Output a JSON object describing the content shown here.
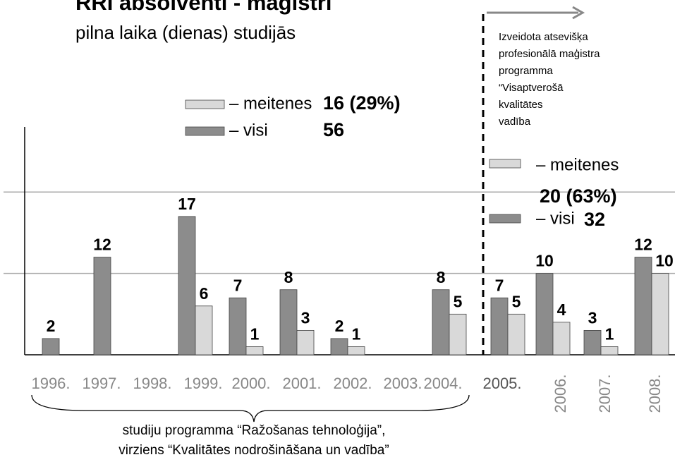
{
  "chart_data": {
    "type": "bar",
    "title": "RRI absolventi - maģistri",
    "subtitle": "pilna laika (dienas) studijās",
    "categories": [
      "1996.",
      "1997.",
      "1998.",
      "1999.",
      "2000.",
      "2001.",
      "2002.",
      "2003.",
      "2004.",
      "2005.",
      "2006.",
      "2007.",
      "2008."
    ],
    "series": [
      {
        "name": "– visi",
        "color": "#8c8c8c",
        "values": [
          2,
          12,
          null,
          17,
          7,
          8,
          2,
          null,
          8,
          7,
          10,
          3,
          12
        ]
      },
      {
        "name": "– meitenes",
        "color": "#d9d9d9",
        "values": [
          null,
          null,
          null,
          6,
          1,
          3,
          1,
          null,
          5,
          5,
          4,
          1,
          10
        ]
      }
    ],
    "ylim": [
      0,
      28
    ],
    "yticks": [
      10,
      20
    ],
    "grid": true,
    "legends": [
      {
        "totals": [
          "16 (29%)",
          "56"
        ]
      },
      {
        "labels": [
          "– meitenes",
          "– visi"
        ],
        "totals": [
          "20 (63%)",
          "32"
        ]
      }
    ],
    "annotation": [
      "Izveidota atsevišķa",
      "profesionālā maģistra",
      "programma",
      "“Visaptverošā",
      "kvalitātes",
      "vadība"
    ],
    "bracket_note": [
      "studiju programma “Ražošanas tehnoloģija”,",
      "virziens “Kvalitātes nodrošināšana un vadība”"
    ]
  }
}
